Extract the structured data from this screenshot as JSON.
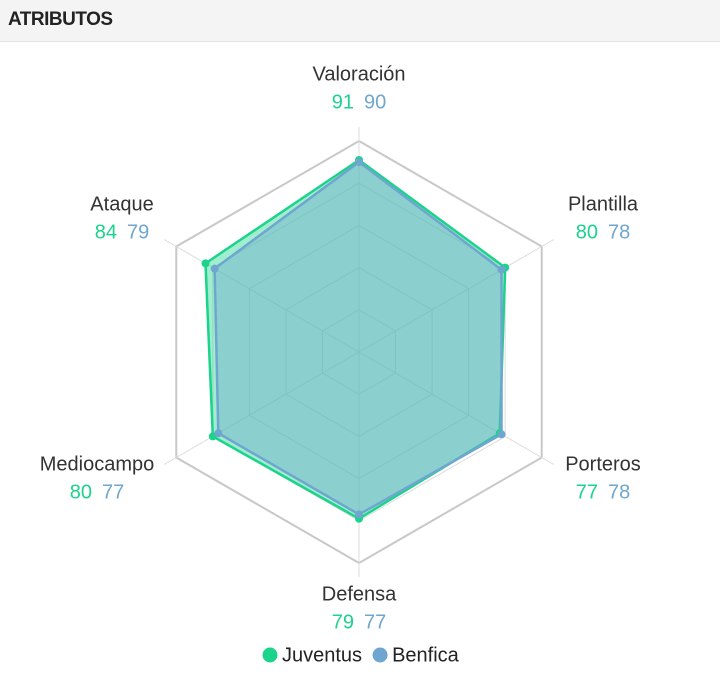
{
  "header": {
    "title": "ATRIBUTOS"
  },
  "chart_data": {
    "type": "radar",
    "categories": [
      "Valoración",
      "Plantilla",
      "Porteros",
      "Defensa",
      "Mediocampo",
      "Ataque"
    ],
    "series": [
      {
        "name": "Juventus",
        "color": "#1cd38c",
        "values": [
          91,
          80,
          77,
          79,
          80,
          84
        ]
      },
      {
        "name": "Benfica",
        "color": "#6fa6cf",
        "values": [
          90,
          78,
          78,
          77,
          77,
          79
        ]
      }
    ],
    "ylim": [
      0,
      100
    ],
    "yticks": [
      20,
      40,
      60,
      80,
      100
    ],
    "grid": true
  }
}
